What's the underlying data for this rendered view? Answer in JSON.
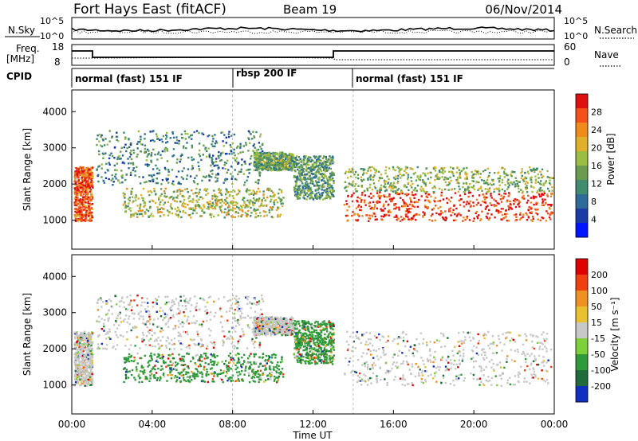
{
  "header": {
    "station": "Fort Hays East (fitACF)",
    "beam": "Beam 19",
    "date": "06/Nov/2014"
  },
  "top_panels": {
    "nsky_label": "N.Sky",
    "nsearch_label": "N.Search",
    "noise_ticks": [
      "10^5",
      "10^0"
    ],
    "freq_label": "Freq.",
    "freq_unit": "[MHz]",
    "freq_ticks": [
      "18",
      "8"
    ],
    "nave_label": "Nave",
    "nave_ticks": [
      "60",
      "0"
    ],
    "cpid_label": "CPID"
  },
  "cpid_segments": [
    {
      "label": "normal (fast) 151 IF",
      "start_hour": 0
    },
    {
      "label": "rbsp 200 IF",
      "start_hour": 8.0
    },
    {
      "label": "normal (fast) 151 IF",
      "start_hour": 14.0
    }
  ],
  "chart_data": [
    {
      "type": "heatmap",
      "ylabel": "Slant Range [km]",
      "yticks": [
        "4000",
        "3000",
        "2000",
        "1000"
      ],
      "ylim": [
        200,
        4600
      ],
      "colorbar_label": "Power [dB]",
      "colorbar_ticks": [
        "28",
        "24",
        "20",
        "16",
        "12",
        "8",
        "4"
      ],
      "colorscale": [
        "#0015ff",
        "#1a3aa6",
        "#2e6b9a",
        "#3f8c6e",
        "#6a9c4e",
        "#9bbd42",
        "#e0b02a",
        "#f08a1a",
        "#f5501a",
        "#e01010"
      ],
      "echo_regions": [
        {
          "t_start": 0.1,
          "t_end": 1.0,
          "r_low": 1000,
          "r_high": 2500,
          "level": 0.85
        },
        {
          "t_start": 1.2,
          "t_end": 9.5,
          "r_low": 2000,
          "r_high": 3500,
          "level": 0.35
        },
        {
          "t_start": 2.5,
          "t_end": 10.5,
          "r_low": 1100,
          "r_high": 1900,
          "level": 0.55
        },
        {
          "t_start": 9.0,
          "t_end": 11.0,
          "r_low": 2400,
          "r_high": 2900,
          "level": 0.45
        },
        {
          "t_start": 11.0,
          "t_end": 13.0,
          "r_low": 1600,
          "r_high": 2800,
          "level": 0.4
        },
        {
          "t_start": 13.5,
          "t_end": 23.9,
          "r_low": 1000,
          "r_high": 1800,
          "level": 0.9
        },
        {
          "t_start": 13.5,
          "t_end": 23.9,
          "r_low": 1800,
          "r_high": 2500,
          "level": 0.5
        }
      ]
    },
    {
      "type": "heatmap",
      "ylabel": "Slant Range [km]",
      "xlabel": "Time UT",
      "yticks": [
        "4000",
        "3000",
        "2000",
        "1000"
      ],
      "ylim": [
        200,
        4600
      ],
      "xticks": [
        "00:00",
        "04:00",
        "08:00",
        "12:00",
        "16:00",
        "20:00",
        "00:00"
      ],
      "xlim_hours": [
        0,
        24
      ],
      "colorbar_label": "Velocity [m s⁻¹]",
      "colorbar_ticks": [
        "200",
        "100",
        "50",
        "15",
        "-15",
        "-50",
        "-100",
        "-200"
      ],
      "colorscale": [
        "#1030c0",
        "#1f6b3a",
        "#2f9a3a",
        "#7cd03a",
        "#c8c8c8",
        "#e8c030",
        "#f09020",
        "#f04010",
        "#e00000"
      ],
      "echo_regions": [
        {
          "t_start": 0.1,
          "t_end": 1.0,
          "r_low": 1000,
          "r_high": 2500,
          "level": 0.5
        },
        {
          "t_start": 1.2,
          "t_end": 9.5,
          "r_low": 2000,
          "r_high": 3500,
          "level": 0.5
        },
        {
          "t_start": 2.5,
          "t_end": 10.5,
          "r_low": 1100,
          "r_high": 1900,
          "level": 0.3
        },
        {
          "t_start": 9.0,
          "t_end": 11.0,
          "r_low": 2400,
          "r_high": 2900,
          "level": 0.5
        },
        {
          "t_start": 11.0,
          "t_end": 13.0,
          "r_low": 1600,
          "r_high": 2800,
          "level": 0.3
        },
        {
          "t_start": 13.5,
          "t_end": 23.9,
          "r_low": 1000,
          "r_high": 2500,
          "level": 0.5
        }
      ]
    }
  ]
}
